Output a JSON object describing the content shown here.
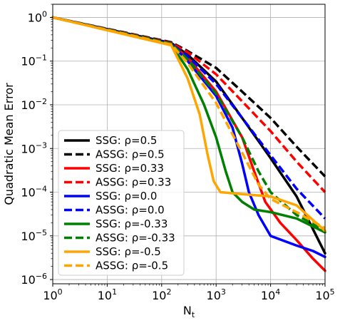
{
  "chart_data": {
    "type": "line",
    "xlabel": "N",
    "xlabel_sub": "t",
    "ylabel": "Quadratic Mean Error",
    "xscale": "log",
    "yscale": "log",
    "xlim": [
      1,
      100000
    ],
    "ylim": [
      8e-07,
      2
    ],
    "grid": true,
    "legend_position": "lower-left",
    "x_ticks": [
      {
        "value": 1,
        "base": "10",
        "exp": "0"
      },
      {
        "value": 10,
        "base": "10",
        "exp": "1"
      },
      {
        "value": 100,
        "base": "10",
        "exp": "2"
      },
      {
        "value": 1000,
        "base": "10",
        "exp": "3"
      },
      {
        "value": 10000,
        "base": "10",
        "exp": "4"
      },
      {
        "value": 100000,
        "base": "10",
        "exp": "5"
      }
    ],
    "y_ticks": [
      {
        "value": 1,
        "base": "10",
        "exp": "0"
      },
      {
        "value": 0.1,
        "base": "10",
        "exp": "−1"
      },
      {
        "value": 0.01,
        "base": "10",
        "exp": "−2"
      },
      {
        "value": 0.001,
        "base": "10",
        "exp": "−3"
      },
      {
        "value": 0.0001,
        "base": "10",
        "exp": "−4"
      },
      {
        "value": 1e-05,
        "base": "10",
        "exp": "−5"
      },
      {
        "value": 1e-06,
        "base": "10",
        "exp": "−6"
      }
    ],
    "series": [
      {
        "name": "SSG: ρ=0.5",
        "color": "#000000",
        "dash": "solid",
        "points": [
          [
            1,
            1
          ],
          [
            150,
            0.26
          ],
          [
            300,
            0.14
          ],
          [
            1000,
            0.034
          ],
          [
            3000,
            0.005
          ],
          [
            10000,
            0.0006
          ],
          [
            30000,
            8e-05
          ],
          [
            100000,
            4e-06
          ]
        ]
      },
      {
        "name": "ASSG: ρ=0.5",
        "color": "#000000",
        "dash": "dashed",
        "points": [
          [
            1,
            1
          ],
          [
            150,
            0.27
          ],
          [
            300,
            0.17
          ],
          [
            1000,
            0.07
          ],
          [
            3000,
            0.02
          ],
          [
            10000,
            0.005
          ],
          [
            30000,
            0.0011
          ],
          [
            100000,
            0.00023
          ]
        ]
      },
      {
        "name": "SSG: ρ=0.33",
        "color": "#ff0000",
        "dash": "solid",
        "points": [
          [
            1,
            1
          ],
          [
            150,
            0.25
          ],
          [
            300,
            0.12
          ],
          [
            1000,
            0.02
          ],
          [
            3000,
            0.0018
          ],
          [
            5000,
            0.0003
          ],
          [
            8000,
            6e-05
          ],
          [
            15000,
            2e-05
          ],
          [
            30000,
            8e-06
          ],
          [
            60000,
            3e-06
          ],
          [
            100000,
            1.6e-06
          ]
        ]
      },
      {
        "name": "ASSG: ρ=0.33",
        "color": "#ff0000",
        "dash": "dashed",
        "points": [
          [
            1,
            1
          ],
          [
            150,
            0.26
          ],
          [
            300,
            0.16
          ],
          [
            1000,
            0.05
          ],
          [
            3000,
            0.012
          ],
          [
            10000,
            0.0025
          ],
          [
            30000,
            0.0005
          ],
          [
            100000,
            0.0001
          ]
        ]
      },
      {
        "name": "SSG: ρ=0.0",
        "color": "#0000ff",
        "dash": "solid",
        "points": [
          [
            1,
            1
          ],
          [
            150,
            0.25
          ],
          [
            300,
            0.1
          ],
          [
            1000,
            0.016
          ],
          [
            2000,
            0.003
          ],
          [
            3000,
            0.00045
          ],
          [
            4000,
            0.0001
          ],
          [
            6000,
            3e-05
          ],
          [
            10000,
            1e-05
          ],
          [
            30000,
            6e-06
          ],
          [
            60000,
            4.5e-06
          ],
          [
            100000,
            3.3e-06
          ]
        ]
      },
      {
        "name": "ASSG: ρ=0.0",
        "color": "#0000ff",
        "dash": "dashed",
        "points": [
          [
            1,
            1
          ],
          [
            150,
            0.25
          ],
          [
            300,
            0.13
          ],
          [
            1000,
            0.03
          ],
          [
            3000,
            0.005
          ],
          [
            10000,
            0.0007
          ],
          [
            30000,
            0.00012
          ],
          [
            100000,
            2.5e-05
          ]
        ]
      },
      {
        "name": "SSG: ρ=-0.33",
        "color": "#008000",
        "dash": "solid",
        "points": [
          [
            1,
            1
          ],
          [
            150,
            0.24
          ],
          [
            300,
            0.065
          ],
          [
            600,
            0.01
          ],
          [
            1000,
            0.0018
          ],
          [
            1500,
            0.0003
          ],
          [
            2000,
            0.0001
          ],
          [
            3000,
            6e-05
          ],
          [
            5000,
            4e-05
          ],
          [
            10000,
            3.5e-05
          ],
          [
            30000,
            2.5e-05
          ],
          [
            100000,
            1.2e-05
          ]
        ]
      },
      {
        "name": "ASSG: ρ=-0.33",
        "color": "#008000",
        "dash": "dashed",
        "points": [
          [
            1,
            1
          ],
          [
            150,
            0.25
          ],
          [
            300,
            0.11
          ],
          [
            1000,
            0.018
          ],
          [
            3000,
            0.0018
          ],
          [
            6000,
            0.0003
          ],
          [
            10000,
            0.0001
          ],
          [
            30000,
            3e-05
          ],
          [
            100000,
            1.3e-05
          ]
        ]
      },
      {
        "name": "SSG: ρ=-0.5",
        "color": "#ffa500",
        "dash": "solid",
        "points": [
          [
            1,
            1
          ],
          [
            150,
            0.23
          ],
          [
            300,
            0.04
          ],
          [
            500,
            0.006
          ],
          [
            700,
            0.0007
          ],
          [
            900,
            0.00018
          ],
          [
            1200,
            0.0001
          ],
          [
            3000,
            9e-05
          ],
          [
            10000,
            8e-05
          ],
          [
            30000,
            5e-05
          ],
          [
            100000,
            1.3e-05
          ]
        ]
      },
      {
        "name": "ASSG: ρ=-0.5",
        "color": "#ffa500",
        "dash": "dashed",
        "points": [
          [
            1,
            1
          ],
          [
            150,
            0.24
          ],
          [
            300,
            0.09
          ],
          [
            1000,
            0.011
          ],
          [
            3000,
            0.0008
          ],
          [
            6000,
            0.00015
          ],
          [
            10000,
            7e-05
          ],
          [
            30000,
            3.5e-05
          ],
          [
            100000,
            1.5e-05
          ]
        ]
      }
    ]
  }
}
